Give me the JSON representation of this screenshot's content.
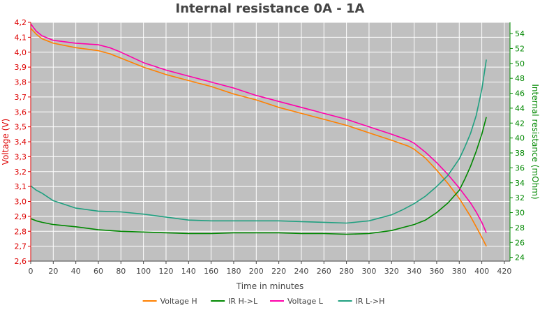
{
  "chart_data": {
    "type": "line",
    "title": "Internal resistance  0A - 1A",
    "xlabel": "Time in minutes",
    "ylabel_left": "Voltage (V)",
    "ylabel_right": "Internal resistance (mOhm)",
    "xlim": [
      0,
      425
    ],
    "ylim_left": [
      2.6,
      4.2
    ],
    "ylim_right": [
      23.5,
      55.5
    ],
    "x_ticks": [
      0,
      20,
      40,
      60,
      80,
      100,
      120,
      140,
      160,
      180,
      200,
      220,
      240,
      260,
      280,
      300,
      320,
      340,
      360,
      380,
      400,
      420
    ],
    "y_left_ticks": [
      "2,6",
      "2,7",
      "2,8",
      "2,9",
      "3,0",
      "3,1",
      "3,2",
      "3,3",
      "3,4",
      "3,5",
      "3,6",
      "3,7",
      "3,8",
      "3,9",
      "4,0",
      "4,1",
      "4,2"
    ],
    "y_right_ticks": [
      "24",
      "26",
      "28",
      "30",
      "32",
      "34",
      "36",
      "38",
      "40",
      "42",
      "44",
      "46",
      "48",
      "50",
      "52",
      "54"
    ],
    "grid": true,
    "legend_position": "bottom",
    "colors": {
      "plot_bg": "#c0c0c0",
      "grid": "#ffffff",
      "left_axis": "#dd0000",
      "right_axis": "#008800",
      "title": "#444444"
    },
    "series": [
      {
        "name": "Voltage H",
        "axis": "left",
        "color": "#ff8000",
        "x": [
          0,
          5,
          10,
          20,
          40,
          60,
          70,
          80,
          100,
          120,
          140,
          160,
          180,
          200,
          220,
          240,
          260,
          280,
          300,
          320,
          335,
          340,
          350,
          360,
          370,
          380,
          390,
          395,
          400,
          404
        ],
        "y": [
          4.16,
          4.12,
          4.09,
          4.06,
          4.03,
          4.01,
          3.99,
          3.96,
          3.9,
          3.85,
          3.81,
          3.77,
          3.72,
          3.68,
          3.63,
          3.59,
          3.55,
          3.51,
          3.46,
          3.41,
          3.37,
          3.35,
          3.29,
          3.21,
          3.12,
          3.02,
          2.9,
          2.83,
          2.76,
          2.7
        ]
      },
      {
        "name": "IR H->L",
        "axis": "right",
        "color": "#008800",
        "x": [
          0,
          5,
          10,
          20,
          40,
          60,
          80,
          100,
          120,
          140,
          160,
          180,
          200,
          220,
          240,
          260,
          280,
          300,
          320,
          330,
          340,
          350,
          360,
          370,
          380,
          385,
          390,
          395,
          400,
          404
        ],
        "y": [
          29.2,
          28.9,
          28.7,
          28.4,
          28.1,
          27.7,
          27.5,
          27.4,
          27.3,
          27.2,
          27.2,
          27.3,
          27.3,
          27.3,
          27.2,
          27.2,
          27.1,
          27.2,
          27.6,
          28.0,
          28.4,
          29.0,
          30.0,
          31.3,
          33.0,
          34.5,
          36.2,
          38.2,
          40.5,
          42.8
        ]
      },
      {
        "name": "Voltage L",
        "axis": "left",
        "color": "#ff00aa",
        "x": [
          0,
          5,
          10,
          20,
          40,
          60,
          70,
          80,
          100,
          120,
          140,
          160,
          180,
          200,
          220,
          240,
          260,
          280,
          300,
          320,
          335,
          340,
          350,
          360,
          370,
          380,
          390,
          395,
          400,
          404
        ],
        "y": [
          4.19,
          4.14,
          4.11,
          4.08,
          4.06,
          4.05,
          4.03,
          4.0,
          3.93,
          3.88,
          3.84,
          3.8,
          3.76,
          3.71,
          3.67,
          3.63,
          3.59,
          3.55,
          3.5,
          3.45,
          3.41,
          3.39,
          3.33,
          3.26,
          3.18,
          3.09,
          2.99,
          2.93,
          2.86,
          2.79
        ]
      },
      {
        "name": "IR L->H",
        "axis": "right",
        "color": "#20a080",
        "x": [
          0,
          5,
          10,
          20,
          40,
          60,
          80,
          100,
          120,
          140,
          160,
          180,
          200,
          220,
          240,
          260,
          280,
          300,
          320,
          330,
          340,
          350,
          360,
          370,
          380,
          385,
          390,
          395,
          400,
          404
        ],
        "y": [
          33.6,
          33.0,
          32.6,
          31.6,
          30.6,
          30.2,
          30.1,
          29.8,
          29.4,
          29.0,
          28.9,
          28.9,
          28.9,
          28.9,
          28.8,
          28.7,
          28.6,
          28.9,
          29.7,
          30.4,
          31.2,
          32.2,
          33.5,
          35.0,
          37.2,
          38.8,
          40.6,
          43.0,
          46.5,
          50.5
        ]
      }
    ]
  }
}
